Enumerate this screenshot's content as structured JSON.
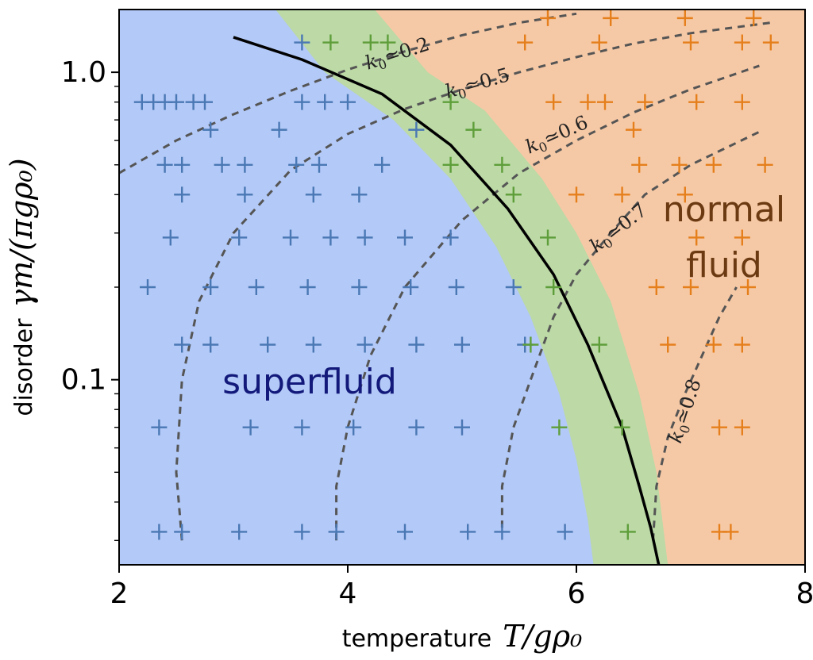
{
  "chart_data": {
    "type": "scatter",
    "xlabel_text": "temperature",
    "xlabel_math": "T/gρ₀",
    "ylabel_text": "disorder",
    "ylabel_math": "γm/(πgρ₀)",
    "xlim": [
      2,
      8
    ],
    "ylim": [
      0.025,
      1.6
    ],
    "y_scale": "log",
    "x_ticks": [
      2,
      4,
      6,
      8
    ],
    "x_tick_labels": [
      "2",
      "4",
      "6",
      "8"
    ],
    "y_ticks": [
      0.1,
      1.0
    ],
    "y_tick_labels": [
      "0.1",
      "1.0"
    ],
    "regions": {
      "superfluid": {
        "label": "superfluid",
        "color": "#b3c9f7",
        "text_color": "#12197a"
      },
      "crossover": {
        "color": "#bcd9a6"
      },
      "normal": {
        "label_line1": "normal",
        "label_line2": "fluid",
        "color": "#f6c9a6",
        "text_color": "#6b3a12"
      }
    },
    "band_left": [
      [
        3.15,
        1.6
      ],
      [
        3.8,
        1.0
      ],
      [
        4.4,
        0.7
      ],
      [
        4.9,
        0.45
      ],
      [
        5.3,
        0.27
      ],
      [
        5.6,
        0.16
      ],
      [
        5.85,
        0.09
      ],
      [
        6.0,
        0.055
      ],
      [
        6.1,
        0.035
      ],
      [
        6.15,
        0.025
      ]
    ],
    "band_right": [
      [
        4.0,
        1.6
      ],
      [
        4.7,
        1.0
      ],
      [
        5.2,
        0.75
      ],
      [
        5.7,
        0.45
      ],
      [
        6.0,
        0.3
      ],
      [
        6.3,
        0.18
      ],
      [
        6.55,
        0.09
      ],
      [
        6.7,
        0.05
      ],
      [
        6.8,
        0.025
      ]
    ],
    "transition_line": [
      [
        3.0,
        1.3
      ],
      [
        3.6,
        1.1
      ],
      [
        4.3,
        0.85
      ],
      [
        4.9,
        0.58
      ],
      [
        5.4,
        0.36
      ],
      [
        5.8,
        0.22
      ],
      [
        6.1,
        0.13
      ],
      [
        6.4,
        0.07
      ],
      [
        6.55,
        0.045
      ],
      [
        6.65,
        0.033
      ],
      [
        6.72,
        0.025
      ]
    ],
    "contours": [
      {
        "label_k": "k",
        "label_sub": "0",
        "label_rest": "≃0.2",
        "label_at": [
          4.45,
          1.1
        ],
        "label_angle": -18,
        "points": [
          [
            2.0,
            0.47
          ],
          [
            2.5,
            0.6
          ],
          [
            3.0,
            0.73
          ],
          [
            3.5,
            0.87
          ],
          [
            4.0,
            1.02
          ],
          [
            4.5,
            1.17
          ],
          [
            5.0,
            1.32
          ],
          [
            5.5,
            1.45
          ],
          [
            6.0,
            1.55
          ]
        ]
      },
      {
        "label_k": "k",
        "label_sub": "0",
        "label_rest": "≃0.5",
        "label_at": [
          5.15,
          0.88
        ],
        "label_angle": -16,
        "points": [
          [
            2.55,
            0.03
          ],
          [
            2.5,
            0.05
          ],
          [
            2.55,
            0.1
          ],
          [
            2.7,
            0.18
          ],
          [
            3.0,
            0.3
          ],
          [
            3.5,
            0.48
          ],
          [
            4.0,
            0.63
          ],
          [
            4.5,
            0.76
          ],
          [
            5.0,
            0.88
          ],
          [
            5.5,
            1.0
          ],
          [
            6.0,
            1.12
          ],
          [
            6.5,
            1.24
          ],
          [
            7.0,
            1.34
          ],
          [
            7.7,
            1.45
          ]
        ]
      },
      {
        "label_k": "k",
        "label_sub": "0",
        "label_rest": "≃0.6",
        "label_at": [
          5.85,
          0.6
        ],
        "label_angle": -24,
        "points": [
          [
            3.9,
            0.03
          ],
          [
            3.9,
            0.045
          ],
          [
            4.0,
            0.07
          ],
          [
            4.2,
            0.12
          ],
          [
            4.5,
            0.2
          ],
          [
            5.0,
            0.33
          ],
          [
            5.5,
            0.47
          ],
          [
            6.0,
            0.6
          ],
          [
            6.5,
            0.74
          ],
          [
            7.0,
            0.88
          ],
          [
            7.6,
            1.05
          ]
        ]
      },
      {
        "label_k": "k",
        "label_sub": "0",
        "label_rest": "≃0.7",
        "label_at": [
          6.4,
          0.3
        ],
        "label_angle": -38,
        "points": [
          [
            5.35,
            0.033
          ],
          [
            5.35,
            0.045
          ],
          [
            5.45,
            0.07
          ],
          [
            5.6,
            0.1
          ],
          [
            5.8,
            0.16
          ],
          [
            6.0,
            0.22
          ],
          [
            6.3,
            0.3
          ],
          [
            6.6,
            0.4
          ],
          [
            7.0,
            0.5
          ],
          [
            7.6,
            0.64
          ]
        ]
      },
      {
        "label_k": "k",
        "label_sub": "0",
        "label_rest": "≃0.8",
        "label_at": [
          7.0,
          0.078
        ],
        "label_angle": -72,
        "points": [
          [
            6.67,
            0.03
          ],
          [
            6.7,
            0.045
          ],
          [
            6.8,
            0.065
          ],
          [
            6.95,
            0.09
          ],
          [
            7.1,
            0.12
          ],
          [
            7.25,
            0.16
          ],
          [
            7.4,
            0.2
          ]
        ]
      }
    ],
    "series": [
      {
        "color": "#4a78b4",
        "points": [
          [
            3.6,
            1.25
          ],
          [
            2.2,
            0.8
          ],
          [
            2.3,
            0.8
          ],
          [
            2.4,
            0.8
          ],
          [
            2.5,
            0.8
          ],
          [
            2.65,
            0.8
          ],
          [
            2.75,
            0.8
          ],
          [
            3.6,
            0.8
          ],
          [
            3.8,
            0.8
          ],
          [
            4.0,
            0.8
          ],
          [
            2.8,
            0.65
          ],
          [
            3.4,
            0.65
          ],
          [
            4.6,
            0.65
          ],
          [
            2.4,
            0.5
          ],
          [
            2.55,
            0.5
          ],
          [
            2.9,
            0.5
          ],
          [
            3.1,
            0.5
          ],
          [
            3.55,
            0.5
          ],
          [
            3.75,
            0.5
          ],
          [
            4.3,
            0.5
          ],
          [
            2.55,
            0.4
          ],
          [
            3.1,
            0.4
          ],
          [
            3.7,
            0.4
          ],
          [
            4.1,
            0.4
          ],
          [
            2.45,
            0.29
          ],
          [
            3.05,
            0.29
          ],
          [
            3.5,
            0.29
          ],
          [
            3.85,
            0.29
          ],
          [
            4.15,
            0.29
          ],
          [
            4.5,
            0.29
          ],
          [
            4.9,
            0.29
          ],
          [
            2.25,
            0.2
          ],
          [
            2.8,
            0.2
          ],
          [
            3.2,
            0.2
          ],
          [
            3.65,
            0.2
          ],
          [
            4.1,
            0.2
          ],
          [
            4.55,
            0.2
          ],
          [
            4.95,
            0.2
          ],
          [
            5.45,
            0.2
          ],
          [
            2.55,
            0.13
          ],
          [
            2.8,
            0.13
          ],
          [
            3.3,
            0.13
          ],
          [
            3.7,
            0.13
          ],
          [
            4.15,
            0.13
          ],
          [
            4.6,
            0.13
          ],
          [
            5.0,
            0.13
          ],
          [
            5.55,
            0.13
          ],
          [
            2.35,
            0.07
          ],
          [
            3.15,
            0.07
          ],
          [
            3.6,
            0.07
          ],
          [
            4.05,
            0.07
          ],
          [
            4.6,
            0.07
          ],
          [
            5.0,
            0.07
          ],
          [
            2.35,
            0.032
          ],
          [
            2.55,
            0.032
          ],
          [
            3.05,
            0.032
          ],
          [
            3.6,
            0.032
          ],
          [
            3.9,
            0.032
          ],
          [
            4.5,
            0.032
          ],
          [
            5.05,
            0.032
          ],
          [
            5.35,
            0.032
          ],
          [
            5.9,
            0.032
          ]
        ]
      },
      {
        "color": "#5e9e3a",
        "points": [
          [
            3.85,
            1.25
          ],
          [
            4.2,
            1.25
          ],
          [
            4.35,
            1.25
          ],
          [
            4.9,
            0.8
          ],
          [
            5.1,
            0.65
          ],
          [
            4.9,
            0.5
          ],
          [
            5.35,
            0.5
          ],
          [
            5.45,
            0.4
          ],
          [
            5.75,
            0.29
          ],
          [
            5.8,
            0.2
          ],
          [
            5.6,
            0.13
          ],
          [
            6.2,
            0.13
          ],
          [
            5.85,
            0.07
          ],
          [
            6.4,
            0.07
          ],
          [
            6.45,
            0.032
          ]
        ]
      },
      {
        "color": "#e57f1c",
        "points": [
          [
            5.75,
            1.5
          ],
          [
            6.3,
            1.5
          ],
          [
            6.95,
            1.5
          ],
          [
            7.55,
            1.5
          ],
          [
            5.55,
            1.25
          ],
          [
            6.2,
            1.25
          ],
          [
            7.0,
            1.25
          ],
          [
            7.45,
            1.25
          ],
          [
            7.7,
            1.25
          ],
          [
            5.8,
            0.8
          ],
          [
            6.1,
            0.8
          ],
          [
            6.25,
            0.8
          ],
          [
            6.6,
            0.8
          ],
          [
            7.05,
            0.8
          ],
          [
            7.45,
            0.8
          ],
          [
            6.5,
            0.65
          ],
          [
            6.55,
            0.5
          ],
          [
            6.9,
            0.5
          ],
          [
            7.2,
            0.5
          ],
          [
            7.65,
            0.5
          ],
          [
            6.0,
            0.4
          ],
          [
            6.4,
            0.4
          ],
          [
            6.95,
            0.4
          ],
          [
            7.05,
            0.29
          ],
          [
            7.45,
            0.29
          ],
          [
            6.7,
            0.2
          ],
          [
            7.0,
            0.2
          ],
          [
            7.5,
            0.2
          ],
          [
            6.8,
            0.13
          ],
          [
            7.2,
            0.13
          ],
          [
            7.45,
            0.13
          ],
          [
            7.25,
            0.07
          ],
          [
            7.45,
            0.07
          ],
          [
            7.25,
            0.032
          ],
          [
            7.35,
            0.032
          ]
        ]
      }
    ]
  }
}
